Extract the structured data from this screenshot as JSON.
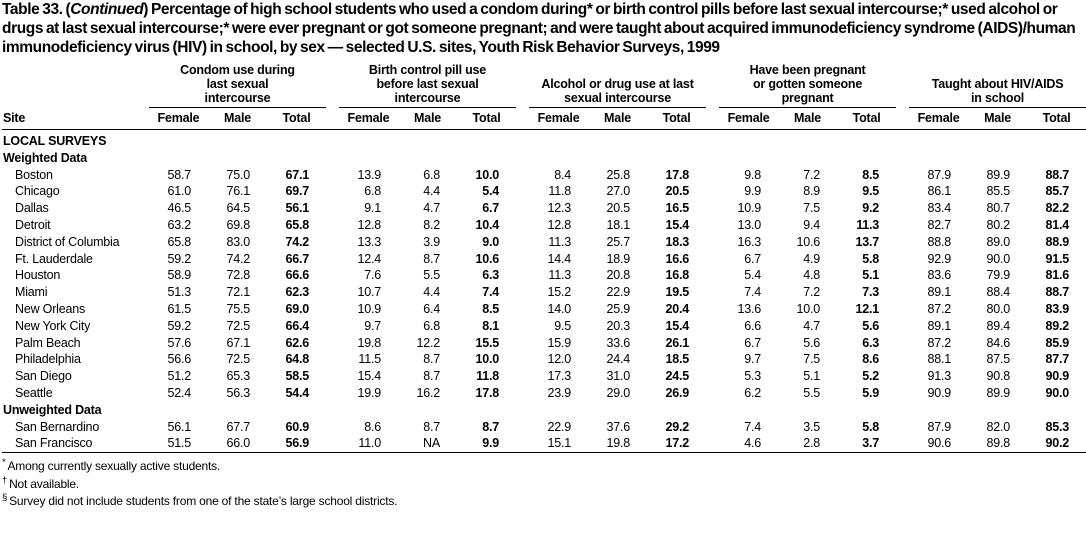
{
  "title": {
    "prefix": "Table 33. (",
    "continued": "Continued",
    "suffix": ") Percentage of high school students who used a condom during* or birth control pills before last sexual intercourse;* used alcohol or drugs at last sexual intercourse;* were ever pregnant or got someone pregnant; and were taught about acquired immunodeficiency syndrome (AIDS)/human immunodeficiency virus (HIV) in school, by sex — selected U.S. sites, Youth Risk Behavior Surveys, 1999"
  },
  "table": {
    "site_header": "Site",
    "sub_headers": [
      "Female",
      "Male",
      "Total"
    ],
    "groups": [
      {
        "id": "condom",
        "label": "Condom use during last sexual intercourse"
      },
      {
        "id": "pill",
        "label": "Birth control pill use before last sexual intercourse"
      },
      {
        "id": "alcohol-drug",
        "label": "Alcohol or drug use at last sexual intercourse"
      },
      {
        "id": "pregnancy",
        "label": "Have been pregnant or gotten someone pregnant"
      },
      {
        "id": "hiv-aids-education",
        "label": "Taught about HIV/AIDS in school"
      }
    ],
    "rows": [
      {
        "type": "section",
        "label": "LOCAL SURVEYS"
      },
      {
        "type": "subsection",
        "label": "Weighted Data"
      },
      {
        "type": "data",
        "site": "Boston",
        "values": [
          "58.7",
          "75.0",
          "67.1",
          "13.9",
          "6.8",
          "10.0",
          "8.4",
          "25.8",
          "17.8",
          "9.8",
          "7.2",
          "8.5",
          "87.9",
          "89.9",
          "88.7"
        ]
      },
      {
        "type": "data",
        "site": "Chicago",
        "values": [
          "61.0",
          "76.1",
          "69.7",
          "6.8",
          "4.4",
          "5.4",
          "11.8",
          "27.0",
          "20.5",
          "9.9",
          "8.9",
          "9.5",
          "86.1",
          "85.5",
          "85.7"
        ]
      },
      {
        "type": "data",
        "site": "Dallas",
        "values": [
          "46.5",
          "64.5",
          "56.1",
          "9.1",
          "4.7",
          "6.7",
          "12.3",
          "20.5",
          "16.5",
          "10.9",
          "7.5",
          "9.2",
          "83.4",
          "80.7",
          "82.2"
        ]
      },
      {
        "type": "data",
        "site": "Detroit",
        "values": [
          "63.2",
          "69.8",
          "65.8",
          "12.8",
          "8.2",
          "10.4",
          "12.8",
          "18.1",
          "15.4",
          "13.0",
          "9.4",
          "11.3",
          "82.7",
          "80.2",
          "81.4"
        ]
      },
      {
        "type": "data",
        "site": "District of Columbia",
        "values": [
          "65.8",
          "83.0",
          "74.2",
          "13.3",
          "3.9",
          "9.0",
          "11.3",
          "25.7",
          "18.3",
          "16.3",
          "10.6",
          "13.7",
          "88.8",
          "89.0",
          "88.9"
        ]
      },
      {
        "type": "data",
        "site": "Ft. Lauderdale",
        "values": [
          "59.2",
          "74.2",
          "66.7",
          "12.4",
          "8.7",
          "10.6",
          "14.4",
          "18.9",
          "16.6",
          "6.7",
          "4.9",
          "5.8",
          "92.9",
          "90.0",
          "91.5"
        ]
      },
      {
        "type": "data",
        "site": "Houston",
        "values": [
          "58.9",
          "72.8",
          "66.6",
          "7.6",
          "5.5",
          "6.3",
          "11.3",
          "20.8",
          "16.8",
          "5.4",
          "4.8",
          "5.1",
          "83.6",
          "79.9",
          "81.6"
        ]
      },
      {
        "type": "data",
        "site": "Miami",
        "values": [
          "51.3",
          "72.1",
          "62.3",
          "10.7",
          "4.4",
          "7.4",
          "15.2",
          "22.9",
          "19.5",
          "7.4",
          "7.2",
          "7.3",
          "89.1",
          "88.4",
          "88.7"
        ]
      },
      {
        "type": "data",
        "site": "New Orleans",
        "values": [
          "61.5",
          "75.5",
          "69.0",
          "10.9",
          "6.4",
          "8.5",
          "14.0",
          "25.9",
          "20.4",
          "13.6",
          "10.0",
          "12.1",
          "87.2",
          "80.0",
          "83.9"
        ]
      },
      {
        "type": "data",
        "site": "New York City",
        "values": [
          "59.2",
          "72.5",
          "66.4",
          "9.7",
          "6.8",
          "8.1",
          "9.5",
          "20.3",
          "15.4",
          "6.6",
          "4.7",
          "5.6",
          "89.1",
          "89.4",
          "89.2"
        ]
      },
      {
        "type": "data",
        "site": "Palm Beach",
        "values": [
          "57.6",
          "67.1",
          "62.6",
          "19.8",
          "12.2",
          "15.5",
          "15.9",
          "33.6",
          "26.1",
          "6.7",
          "5.6",
          "6.3",
          "87.2",
          "84.6",
          "85.9"
        ]
      },
      {
        "type": "data",
        "site": "Philadelphia",
        "values": [
          "56.6",
          "72.5",
          "64.8",
          "11.5",
          "8.7",
          "10.0",
          "12.0",
          "24.4",
          "18.5",
          "9.7",
          "7.5",
          "8.6",
          "88.1",
          "87.5",
          "87.7"
        ]
      },
      {
        "type": "data",
        "site": "San Diego",
        "values": [
          "51.2",
          "65.3",
          "58.5",
          "15.4",
          "8.7",
          "11.8",
          "17.3",
          "31.0",
          "24.5",
          "5.3",
          "5.1",
          "5.2",
          "91.3",
          "90.8",
          "90.9"
        ]
      },
      {
        "type": "data",
        "site": "Seattle",
        "values": [
          "52.4",
          "56.3",
          "54.4",
          "19.9",
          "16.2",
          "17.8",
          "23.9",
          "29.0",
          "26.9",
          "6.2",
          "5.5",
          "5.9",
          "90.9",
          "89.9",
          "90.0"
        ]
      },
      {
        "type": "subsection",
        "label": "Unweighted Data"
      },
      {
        "type": "data",
        "site": "San Bernardino",
        "values": [
          "56.1",
          "67.7",
          "60.9",
          "8.6",
          "8.7",
          "8.7",
          "22.9",
          "37.6",
          "29.2",
          "7.4",
          "3.5",
          "5.8",
          "87.9",
          "82.0",
          "85.3"
        ]
      },
      {
        "type": "data",
        "site": "San Francisco",
        "values": [
          "51.5",
          "66.0",
          "56.9",
          "11.0",
          "NA",
          "9.9",
          "15.1",
          "19.8",
          "17.2",
          "4.6",
          "2.8",
          "3.7",
          "90.6",
          "89.8",
          "90.2"
        ]
      }
    ]
  },
  "footnotes": [
    {
      "symbol": "*",
      "text": "Among currently sexually active students."
    },
    {
      "symbol": "†",
      "text": "Not available."
    },
    {
      "symbol": "§",
      "text": "Survey did not include students from one of the state’s large school districts."
    }
  ]
}
